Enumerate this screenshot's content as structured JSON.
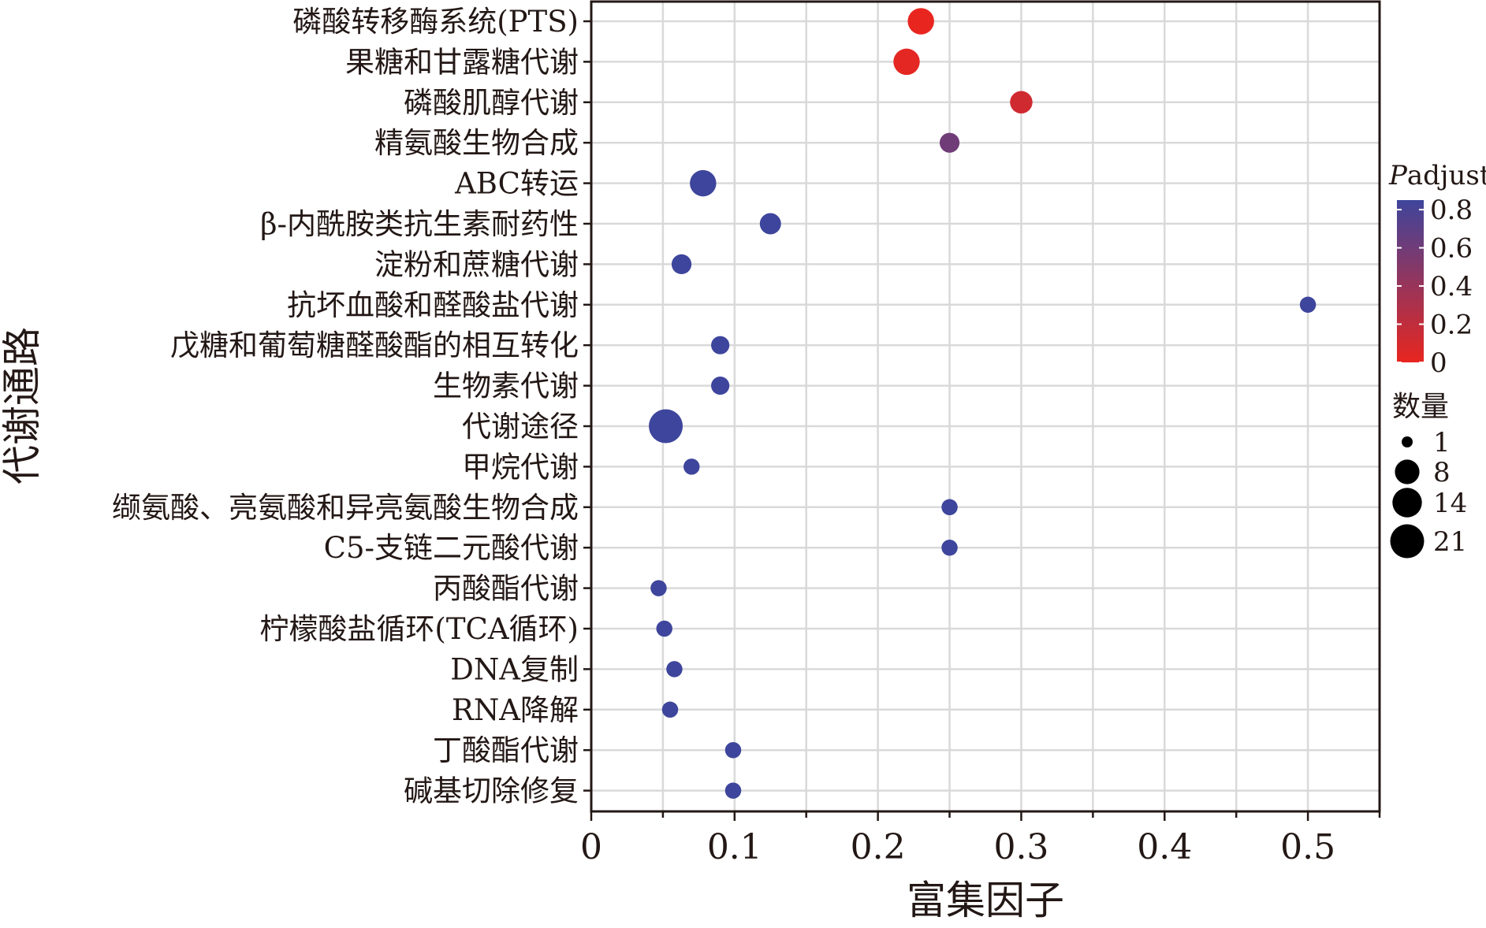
{
  "chart_data": {
    "type": "scatter",
    "title": "",
    "xlabel": "富集因子",
    "ylabel": "代谢通路",
    "xlim": [
      0,
      0.55
    ],
    "x_ticks": [
      0,
      0.1,
      0.2,
      0.3,
      0.4,
      0.5
    ],
    "x_tick_labels": [
      "0",
      "0.1",
      "0.2",
      "0.3",
      "0.4",
      "0.5"
    ],
    "grid": true,
    "categories": [
      "磷酸转移酶系统(PTS)",
      "果糖和甘露糖代谢",
      "磷酸肌醇代谢",
      "精氨酸生物合成",
      "ABC转运",
      "β-内酰胺类抗生素耐药性",
      "淀粉和蔗糖代谢",
      "抗坏血酸和醛酸盐代谢",
      "戊糖和葡萄糖醛酸酯的相互转化",
      "生物素代谢",
      "代谢途径",
      "甲烷代谢",
      "缬氨酸、亮氨酸和异亮氨酸生物合成",
      "C5-支链二元酸代谢",
      "丙酸酯代谢",
      "柠檬酸盐循环(TCA循环)",
      "DNA复制",
      "RNA降解",
      "丁酸酯代谢",
      "碱基切除修复"
    ],
    "points": [
      {
        "pathway": "磷酸转移酶系统(PTS)",
        "rich_factor": 0.23,
        "count": 10,
        "padjust": 0.0
      },
      {
        "pathway": "果糖和甘露糖代谢",
        "rich_factor": 0.22,
        "count": 10,
        "padjust": 0.02
      },
      {
        "pathway": "磷酸肌醇代谢",
        "rich_factor": 0.3,
        "count": 6,
        "padjust": 0.12
      },
      {
        "pathway": "精氨酸生物合成",
        "rich_factor": 0.25,
        "count": 4,
        "padjust": 0.6
      },
      {
        "pathway": "ABC转运",
        "rich_factor": 0.078,
        "count": 10,
        "padjust": 0.85
      },
      {
        "pathway": "β-内酰胺类抗生素耐药性",
        "rich_factor": 0.125,
        "count": 5,
        "padjust": 0.85
      },
      {
        "pathway": "淀粉和蔗糖代谢",
        "rich_factor": 0.063,
        "count": 4,
        "padjust": 0.85
      },
      {
        "pathway": "抗坏血酸和醛酸盐代谢",
        "rich_factor": 0.5,
        "count": 2,
        "padjust": 0.85
      },
      {
        "pathway": "戊糖和葡萄糖醛酸酯的相互转化",
        "rich_factor": 0.09,
        "count": 3,
        "padjust": 0.85
      },
      {
        "pathway": "生物素代谢",
        "rich_factor": 0.09,
        "count": 3,
        "padjust": 0.85
      },
      {
        "pathway": "代谢途径",
        "rich_factor": 0.052,
        "count": 21,
        "padjust": 0.85
      },
      {
        "pathway": "甲烷代谢",
        "rich_factor": 0.07,
        "count": 2,
        "padjust": 0.85
      },
      {
        "pathway": "缬氨酸、亮氨酸和异亮氨酸生物合成",
        "rich_factor": 0.25,
        "count": 2,
        "padjust": 0.85
      },
      {
        "pathway": "C5-支链二元酸代谢",
        "rich_factor": 0.25,
        "count": 2,
        "padjust": 0.85
      },
      {
        "pathway": "丙酸酯代谢",
        "rich_factor": 0.047,
        "count": 2,
        "padjust": 0.85
      },
      {
        "pathway": "柠檬酸盐循环(TCA循环)",
        "rich_factor": 0.051,
        "count": 2,
        "padjust": 0.85
      },
      {
        "pathway": "DNA复制",
        "rich_factor": 0.058,
        "count": 2,
        "padjust": 0.85
      },
      {
        "pathway": "RNA降解",
        "rich_factor": 0.055,
        "count": 2,
        "padjust": 0.85
      },
      {
        "pathway": "丁酸酯代谢",
        "rich_factor": 0.099,
        "count": 2,
        "padjust": 0.85
      },
      {
        "pathway": "碱基切除修复",
        "rich_factor": 0.099,
        "count": 2,
        "padjust": 0.85
      }
    ],
    "legend_color": {
      "title_italic": "P",
      "title_rest": "adjust",
      "ticks": [
        0.8,
        0.6,
        0.4,
        0.2,
        0
      ],
      "tick_labels": [
        "0.8",
        "0.6",
        "0.4",
        "0.2",
        "0"
      ],
      "range": [
        0,
        0.85
      ],
      "color_low": "#e8261f",
      "color_high": "#3e459c"
    },
    "legend_size": {
      "title": "数量",
      "values": [
        1,
        8,
        14,
        21
      ],
      "labels": [
        "1",
        "8",
        "14",
        "21"
      ]
    },
    "legend_position": "right"
  }
}
